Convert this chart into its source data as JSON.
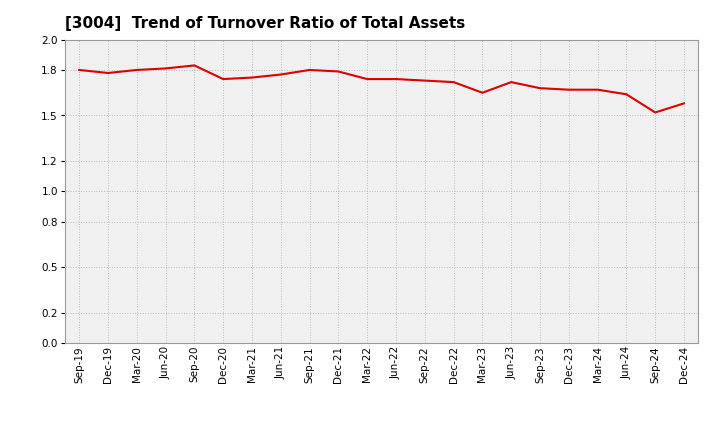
{
  "title": "[3004]  Trend of Turnover Ratio of Total Assets",
  "x_labels": [
    "Sep-19",
    "Dec-19",
    "Mar-20",
    "Jun-20",
    "Sep-20",
    "Dec-20",
    "Mar-21",
    "Jun-21",
    "Sep-21",
    "Dec-21",
    "Mar-22",
    "Jun-22",
    "Sep-22",
    "Dec-22",
    "Mar-23",
    "Jun-23",
    "Sep-23",
    "Dec-23",
    "Mar-24",
    "Jun-24",
    "Sep-24",
    "Dec-24"
  ],
  "y_values": [
    1.8,
    1.78,
    1.8,
    1.81,
    1.83,
    1.74,
    1.75,
    1.77,
    1.8,
    1.79,
    1.74,
    1.74,
    1.73,
    1.72,
    1.65,
    1.72,
    1.68,
    1.67,
    1.67,
    1.64,
    1.52,
    1.58
  ],
  "line_color": "#dd0000",
  "line_width": 1.5,
  "ylim": [
    0.0,
    2.0
  ],
  "yticks": [
    0.0,
    0.2,
    0.5,
    0.8,
    1.0,
    1.2,
    1.5,
    1.8,
    2.0
  ],
  "grid_color": "#bbbbbb",
  "bg_color": "#ffffff",
  "plot_bg_color": "#f0f0f0",
  "title_fontsize": 11,
  "tick_fontsize": 7.5
}
